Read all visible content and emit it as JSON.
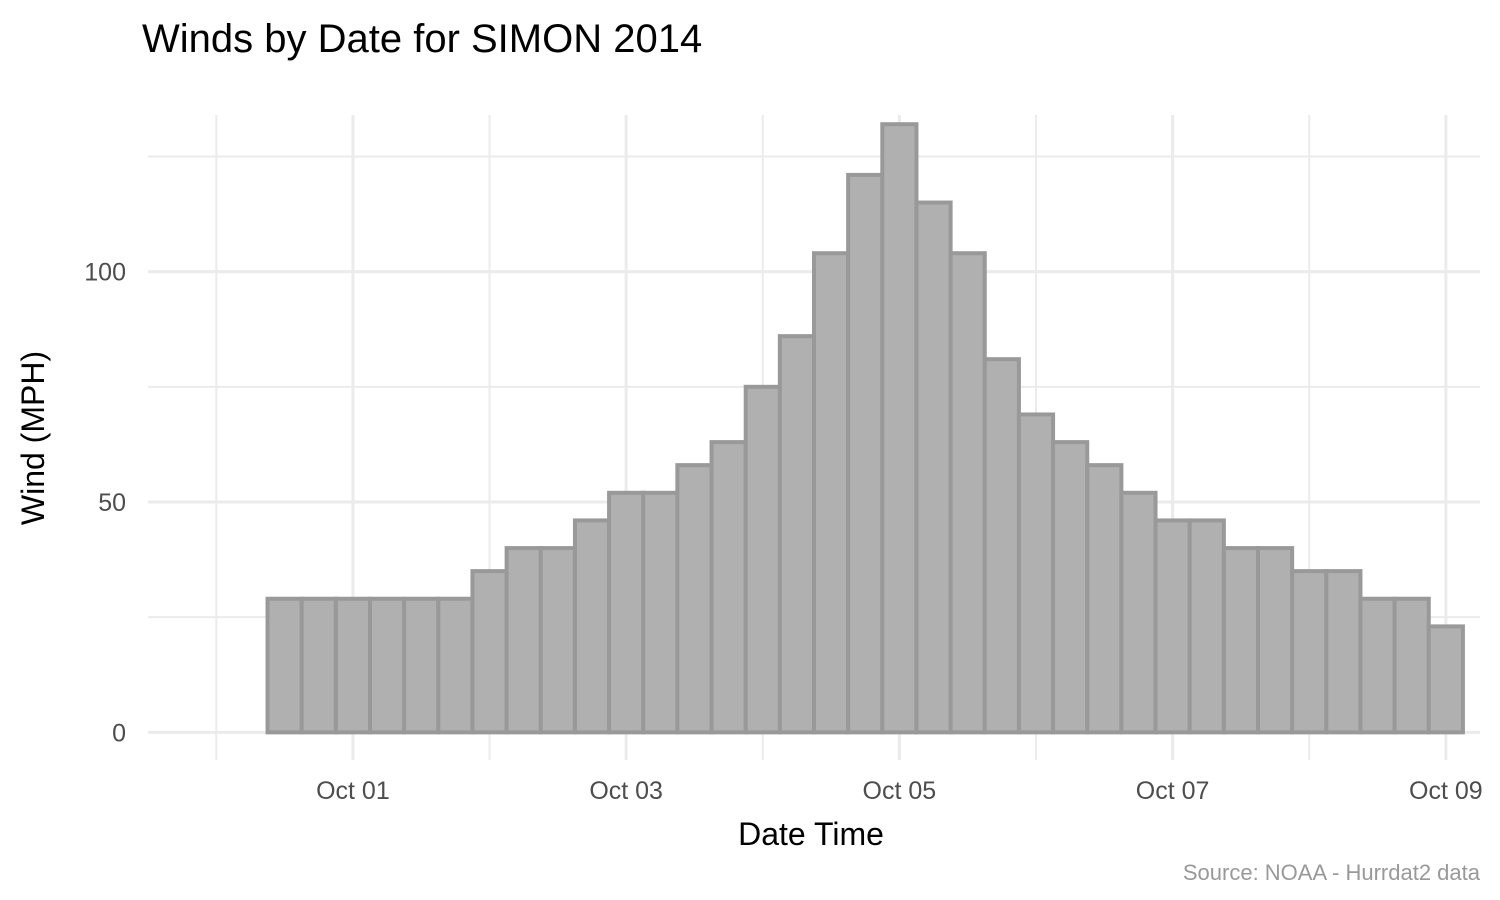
{
  "chart_data": {
    "type": "bar",
    "title": "Winds by Date for SIMON 2014",
    "xlabel": "Date Time",
    "ylabel": "Wind (MPH)",
    "caption": "Source: NOAA - Hurrdat2 data",
    "x_tick_labels": [
      "Oct 01",
      "Oct 03",
      "Oct 05",
      "Oct 07",
      "Oct 09"
    ],
    "x_tick_dates": [
      "2014-10-01",
      "2014-10-03",
      "2014-10-05",
      "2014-10-07",
      "2014-10-09"
    ],
    "y_ticks": [
      0,
      50,
      100
    ],
    "ylim": [
      -6,
      134
    ],
    "xlim": [
      "2014-09-29 12:00",
      "2014-10-09 06:00"
    ],
    "grid": true,
    "legend": "none",
    "colors": {
      "fill": "#b0b0b0",
      "outline": "#999999",
      "grid": "#ebebeb"
    },
    "series": [
      {
        "x": [
          "2014-09-30 12:00",
          "2014-09-30 18:00",
          "2014-10-01 00:00",
          "2014-10-01 06:00",
          "2014-10-01 12:00",
          "2014-10-01 18:00",
          "2014-10-02 00:00",
          "2014-10-02 06:00",
          "2014-10-02 12:00",
          "2014-10-02 18:00",
          "2014-10-03 00:00",
          "2014-10-03 06:00",
          "2014-10-03 12:00",
          "2014-10-03 18:00",
          "2014-10-04 00:00",
          "2014-10-04 06:00",
          "2014-10-04 12:00",
          "2014-10-04 18:00",
          "2014-10-05 00:00",
          "2014-10-05 06:00",
          "2014-10-05 12:00",
          "2014-10-05 18:00",
          "2014-10-06 00:00",
          "2014-10-06 06:00",
          "2014-10-06 12:00",
          "2014-10-06 18:00",
          "2014-10-07 00:00",
          "2014-10-07 06:00",
          "2014-10-07 12:00",
          "2014-10-07 18:00",
          "2014-10-08 00:00",
          "2014-10-08 06:00",
          "2014-10-08 12:00",
          "2014-10-08 18:00",
          "2014-10-09 00:00"
        ],
        "values": [
          29,
          29,
          29,
          29,
          29,
          29,
          35,
          40,
          40,
          46,
          52,
          52,
          58,
          63,
          75,
          86,
          104,
          121,
          132,
          115,
          104,
          81,
          69,
          63,
          58,
          52,
          46,
          46,
          40,
          40,
          35,
          35,
          29,
          29,
          23
        ]
      }
    ]
  }
}
